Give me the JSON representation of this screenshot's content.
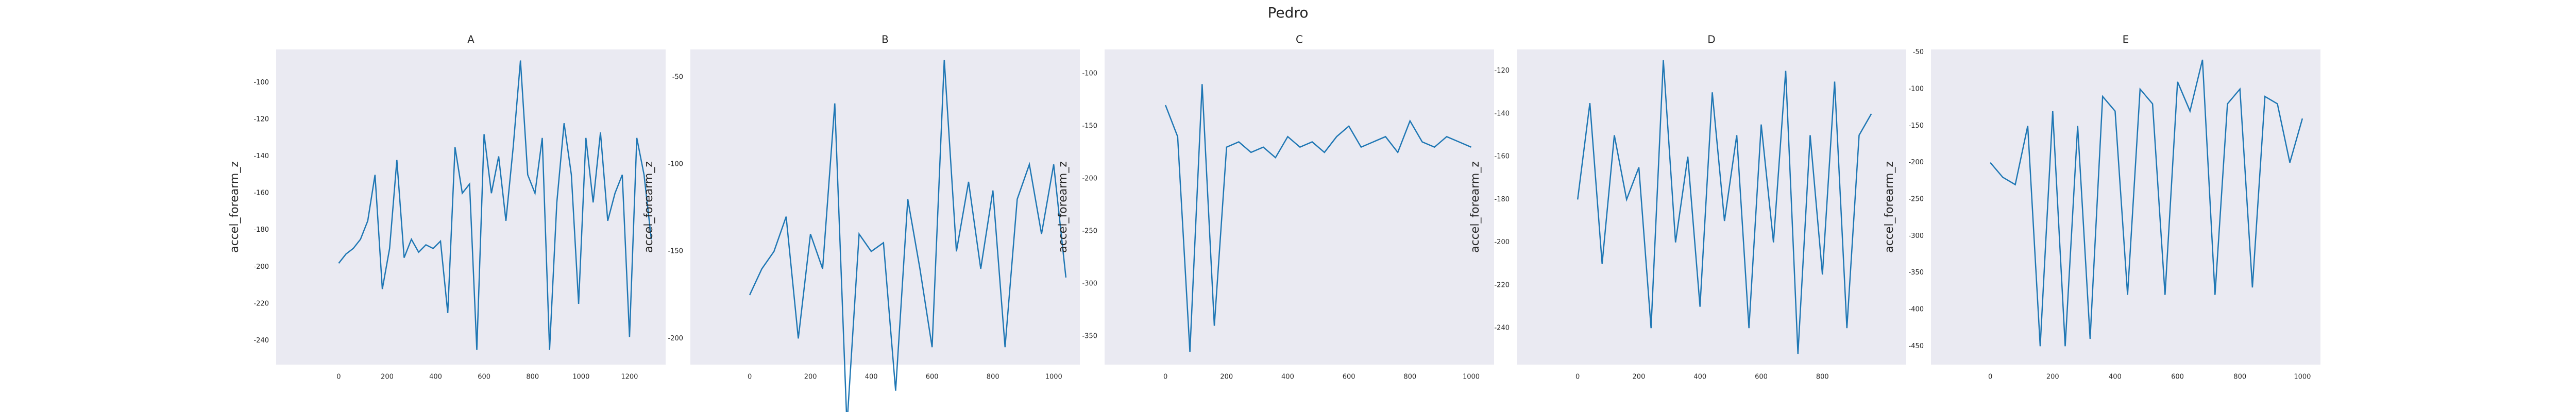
{
  "title": "Pedro",
  "chart_data": [
    {
      "type": "line",
      "title": "A",
      "y_label": "accel_forearm_z",
      "color": "#1f77b4",
      "grid": false,
      "x": [
        0,
        30,
        60,
        90,
        120,
        150,
        180,
        210,
        240,
        270,
        300,
        330,
        360,
        390,
        420,
        450,
        480,
        510,
        540,
        570,
        600,
        630,
        660,
        690,
        720,
        750,
        780,
        810,
        840,
        870,
        900,
        930,
        960,
        990,
        1020,
        1050,
        1080,
        1110,
        1140,
        1170,
        1200,
        1230,
        1260,
        1290
      ],
      "values": [
        -198,
        -193,
        -190,
        -185,
        -175,
        -150,
        -212,
        -190,
        -142,
        -195,
        -185,
        -192,
        -188,
        -190,
        -186,
        -225,
        -135,
        -160,
        -155,
        -245,
        -128,
        -160,
        -140,
        -175,
        -135,
        -88,
        -150,
        -160,
        -130,
        -245,
        -165,
        -122,
        -150,
        -220,
        -130,
        -165,
        -127,
        -175,
        -160,
        -150,
        -238,
        -130,
        -150,
        -185
      ],
      "xlim": [
        -258,
        1349
      ],
      "ylim": [
        -253,
        -82
      ],
      "xticks": [
        0,
        200,
        400,
        600,
        800,
        1000,
        1200
      ],
      "yticks": [
        -100,
        -120,
        -140,
        -160,
        -180,
        -200,
        -220,
        -240
      ]
    },
    {
      "type": "line",
      "title": "B",
      "y_label": "accel_forearm_z",
      "color": "#1f77b4",
      "grid": false,
      "x": [
        0,
        40,
        80,
        120,
        160,
        200,
        240,
        280,
        320,
        360,
        400,
        440,
        480,
        520,
        560,
        600,
        640,
        680,
        720,
        760,
        800,
        840,
        880,
        920,
        960,
        1000,
        1040
      ],
      "values": [
        -175,
        -160,
        -150,
        -130,
        -200,
        -140,
        -160,
        -65,
        -250,
        -140,
        -150,
        -145,
        -230,
        -120,
        -160,
        -205,
        -40,
        -150,
        -110,
        -160,
        -115,
        -205,
        -120,
        -100,
        -140,
        -100,
        -165
      ],
      "xlim": [
        -195,
        1086
      ],
      "ylim": [
        -215,
        -34
      ],
      "xticks": [
        0,
        200,
        400,
        600,
        800,
        1000
      ],
      "yticks": [
        -50,
        -100,
        -150,
        -200
      ]
    },
    {
      "type": "line",
      "title": "C",
      "y_label": "accel_forearm_z",
      "color": "#1f77b4",
      "grid": false,
      "x": [
        0,
        40,
        80,
        120,
        160,
        200,
        240,
        280,
        320,
        360,
        400,
        440,
        480,
        520,
        560,
        600,
        640,
        680,
        720,
        760,
        800,
        840,
        880,
        920,
        960,
        1000
      ],
      "values": [
        -130,
        -160,
        -365,
        -110,
        -340,
        -170,
        -165,
        -175,
        -170,
        -180,
        -160,
        -170,
        -165,
        -175,
        -160,
        -150,
        -170,
        -165,
        -160,
        -175,
        -145,
        -165,
        -170,
        -160,
        -165,
        -170
      ],
      "xlim": [
        -199,
        1075
      ],
      "ylim": [
        -377,
        -77
      ],
      "xticks": [
        0,
        200,
        400,
        600,
        800,
        1000
      ],
      "yticks": [
        -100,
        -150,
        -200,
        -250,
        -300,
        -350
      ]
    },
    {
      "type": "line",
      "title": "D",
      "y_label": "accel_forearm_z",
      "color": "#1f77b4",
      "grid": false,
      "x": [
        0,
        40,
        80,
        120,
        160,
        200,
        240,
        280,
        320,
        360,
        400,
        440,
        480,
        520,
        560,
        600,
        640,
        680,
        720,
        760,
        800,
        840,
        880,
        920,
        960
      ],
      "values": [
        -180,
        -135,
        -210,
        -150,
        -180,
        -165,
        -240,
        -115,
        -200,
        -160,
        -230,
        -130,
        -190,
        -150,
        -240,
        -145,
        -200,
        -120,
        -252,
        -150,
        -215,
        -125,
        -240,
        -150,
        -140
      ],
      "xlim": [
        -199,
        1074
      ],
      "ylim": [
        -257,
        -110
      ],
      "xticks": [
        0,
        200,
        400,
        600,
        800
      ],
      "yticks": [
        -120,
        -140,
        -160,
        -180,
        -200,
        -220,
        -240
      ]
    },
    {
      "type": "line",
      "title": "E",
      "y_label": "accel_forearm_z",
      "color": "#1f77b4",
      "grid": false,
      "x": [
        0,
        40,
        80,
        120,
        160,
        200,
        240,
        280,
        320,
        360,
        400,
        440,
        480,
        520,
        560,
        600,
        640,
        680,
        720,
        760,
        800,
        840,
        880,
        920,
        960,
        1000
      ],
      "values": [
        -200,
        -220,
        -230,
        -150,
        -450,
        -130,
        -450,
        -150,
        -440,
        -110,
        -130,
        -380,
        -100,
        -120,
        -380,
        -90,
        -130,
        -60,
        -380,
        -120,
        -100,
        -370,
        -110,
        -120,
        -200,
        -140
      ],
      "xlim": [
        -190,
        1058
      ],
      "ylim": [
        -475,
        -46
      ],
      "xticks": [
        0,
        200,
        400,
        600,
        800,
        1000
      ],
      "yticks": [
        -50,
        -100,
        -150,
        -200,
        -250,
        -300,
        -350,
        -400,
        -450
      ]
    }
  ]
}
